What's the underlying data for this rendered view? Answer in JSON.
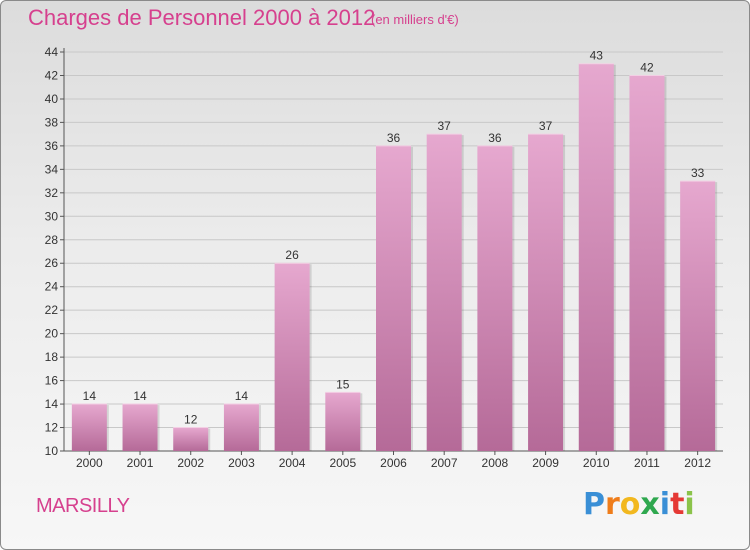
{
  "header": {
    "title": "Charges de Personnel 2000 à 2012",
    "subtitle": "(en milliers d'€)"
  },
  "footer": {
    "place": "MARSILLY",
    "logo_letters": [
      "P",
      "r",
      "o",
      "x",
      "i",
      "t",
      "i"
    ],
    "logo_colors": [
      "#3a8fd6",
      "#ef7d1b",
      "#f2b81f",
      "#2fa84f",
      "#3a8fd6",
      "#e53935",
      "#8bc34a"
    ]
  },
  "colors": {
    "title": "#d6408e",
    "bar_top": "#e6a8cf",
    "bar_bottom": "#b56a98",
    "grid": "#c8c8c8"
  },
  "chart_data": {
    "type": "bar",
    "categories": [
      "2000",
      "2001",
      "2002",
      "2003",
      "2004",
      "2005",
      "2006",
      "2007",
      "2008",
      "2009",
      "2010",
      "2011",
      "2012"
    ],
    "values": [
      14,
      14,
      12,
      14,
      26,
      15,
      36,
      37,
      36,
      37,
      43,
      42,
      33
    ],
    "data_labels": [
      "14",
      "14",
      "12",
      "14",
      "26",
      "15",
      "36",
      "37",
      "36",
      "37",
      "43",
      "42",
      "33"
    ],
    "ylim": [
      10,
      44
    ],
    "yticks": [
      10,
      12,
      14,
      16,
      18,
      20,
      22,
      24,
      26,
      28,
      30,
      32,
      34,
      36,
      38,
      40,
      42,
      44
    ],
    "grid": true,
    "xlabel": "",
    "ylabel": ""
  }
}
